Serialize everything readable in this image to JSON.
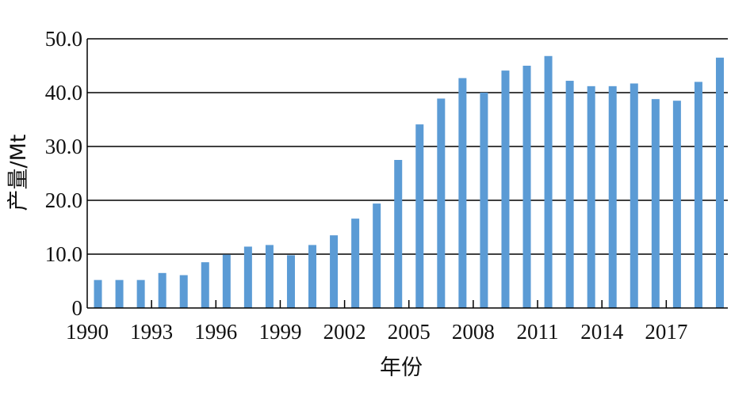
{
  "chart_data": {
    "type": "bar",
    "title": "",
    "xlabel": "年份",
    "ylabel": "产量/Mt",
    "ylim": [
      0,
      50
    ],
    "yticks": [
      0,
      10,
      20,
      30,
      40,
      50
    ],
    "ytick_labels": [
      "0",
      "10.0",
      "20.0",
      "30.0",
      "40.0",
      "50.0"
    ],
    "xtick_labels": [
      "1990",
      "1993",
      "1996",
      "1999",
      "2002",
      "2005",
      "2008",
      "2011",
      "2014",
      "2017"
    ],
    "grid": "horizontal",
    "bar_color": "#5b9bd5",
    "categories": [
      1990,
      1991,
      1992,
      1993,
      1994,
      1995,
      1996,
      1997,
      1998,
      1999,
      2000,
      2001,
      2002,
      2003,
      2004,
      2005,
      2006,
      2007,
      2008,
      2009,
      2010,
      2011,
      2012,
      2013,
      2014,
      2015,
      2016,
      2017,
      2018,
      2019
    ],
    "values": [
      5.2,
      5.2,
      5.2,
      6.5,
      6.1,
      8.5,
      9.9,
      11.4,
      11.7,
      9.8,
      11.7,
      13.5,
      16.6,
      19.4,
      27.5,
      34.1,
      38.9,
      42.7,
      40.0,
      44.1,
      45.0,
      46.8,
      42.2,
      41.2,
      41.2,
      41.7,
      38.8,
      38.5,
      42.0,
      46.5
    ]
  }
}
